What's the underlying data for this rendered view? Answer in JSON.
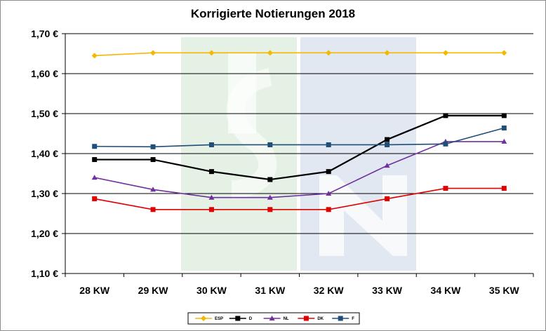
{
  "chart_data": {
    "type": "line",
    "title": "Korrigierte Notierungen 2018",
    "xlabel": "",
    "ylabel": "",
    "categories": [
      "28 KW",
      "29 KW",
      "30 KW",
      "31 KW",
      "32 KW",
      "33 KW",
      "34 KW",
      "35 KW"
    ],
    "y_ticks": [
      "1,10 €",
      "1,20 €",
      "1,30 €",
      "1,40 €",
      "1,50 €",
      "1,60 €",
      "1,70 €"
    ],
    "ylim": [
      1.1,
      1.7
    ],
    "grid": true,
    "legend_position": "bottom",
    "series": [
      {
        "name": "ESP",
        "color": "#f5b800",
        "marker": "diamond",
        "values": [
          1.645,
          1.652,
          1.652,
          1.652,
          1.652,
          1.652,
          1.652,
          1.652
        ]
      },
      {
        "name": "D",
        "color": "#000000",
        "marker": "square",
        "values": [
          1.385,
          1.385,
          1.355,
          1.335,
          1.355,
          1.435,
          1.495,
          1.495
        ]
      },
      {
        "name": "NL",
        "color": "#7030a0",
        "marker": "triangle",
        "values": [
          1.34,
          1.31,
          1.29,
          1.29,
          1.3,
          1.37,
          1.43,
          1.43
        ]
      },
      {
        "name": "DK",
        "color": "#e00000",
        "marker": "square",
        "values": [
          1.287,
          1.26,
          1.26,
          1.26,
          1.26,
          1.287,
          1.313,
          1.313
        ]
      },
      {
        "name": "F",
        "color": "#1f4e79",
        "marker": "square",
        "values": [
          1.418,
          1.417,
          1.422,
          1.422,
          1.422,
          1.422,
          1.424,
          1.464
        ]
      }
    ]
  }
}
